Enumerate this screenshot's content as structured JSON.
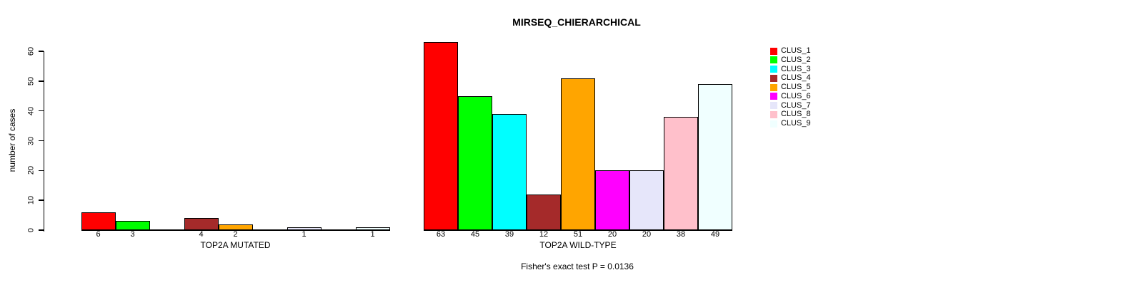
{
  "page": {
    "background": "#FFFFFF"
  },
  "chart_data": {
    "type": "bar",
    "title": "MIRSEQ_CHIERARCHICAL",
    "ylabel": "number of cases",
    "xlabel": "",
    "ylim": [
      0,
      60
    ],
    "yticks": [
      0,
      10,
      20,
      30,
      40,
      50,
      60
    ],
    "grid": false,
    "bar_border_color": "#000000",
    "legend_position": "top-right",
    "clusters": [
      {
        "label": "CLUS_1",
        "color": "#FF0000"
      },
      {
        "label": "CLUS_2",
        "color": "#00FF00"
      },
      {
        "label": "CLUS_3",
        "color": "#00FFFF"
      },
      {
        "label": "CLUS_4",
        "color": "#A52A2A"
      },
      {
        "label": "CLUS_5",
        "color": "#FFA500"
      },
      {
        "label": "CLUS_6",
        "color": "#FF00FF"
      },
      {
        "label": "CLUS_7",
        "color": "#E6E6FA"
      },
      {
        "label": "CLUS_8",
        "color": "#FFC0CB"
      },
      {
        "label": "CLUS_9",
        "color": "#F0FFFF"
      }
    ],
    "groups": [
      {
        "label": "TOP2A MUTATED",
        "values": [
          6,
          3,
          0,
          4,
          2,
          0,
          1,
          0,
          1
        ]
      },
      {
        "label": "TOP2A WILD-TYPE",
        "values": [
          63,
          45,
          39,
          12,
          51,
          20,
          20,
          38,
          49
        ]
      }
    ],
    "bar_value_labels_hide_zero": true,
    "annotation": "Fisher's exact test P = 0.0136"
  }
}
